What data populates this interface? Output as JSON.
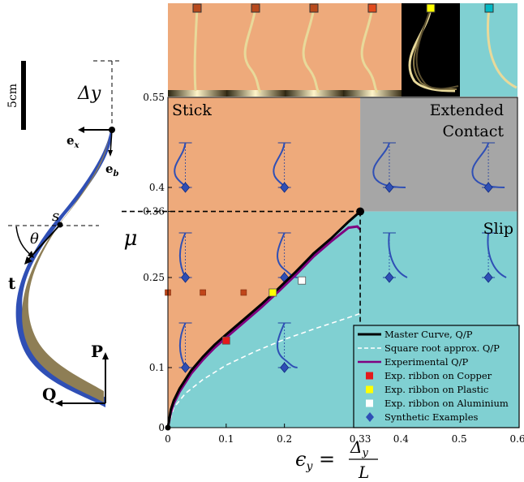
{
  "colors": {
    "stick": "#EEAA7B",
    "slip": "#80D0D2",
    "extended": "#A6A6A6",
    "master": "#000000",
    "sqrt": "#ffffff",
    "experimental": "#800080",
    "copper": "#E41A1C",
    "plastic": "#FFFF00",
    "aluminium": "#ffffff",
    "synthetic": "#2F4FB5",
    "ribbon_outer": "#2F4FB5",
    "ribbon_inner": "#8E7E55"
  },
  "left_panel": {
    "scale_label": "5cm",
    "delta_label": "Δy",
    "ex_label": "ex",
    "eb_label": "eb",
    "s_label": "s",
    "theta_label": "θ",
    "t_label": "t",
    "P_label": "P",
    "Q_label": "Q"
  },
  "regions": {
    "stick": "Stick",
    "extended_line1": "Extended",
    "extended_line2": "Contact",
    "slip": "Slip"
  },
  "chart_data": {
    "type": "line",
    "xlabel": "ϵy = Δy / L",
    "ylabel": "μ",
    "xlim": [
      0,
      0.6
    ],
    "ylim": [
      0,
      0.55
    ],
    "x_ticks": [
      0,
      0.1,
      0.2,
      0.33,
      0.4,
      0.5,
      0.6
    ],
    "x_tick_labels": [
      "0",
      "0.1",
      "0.2",
      "0.33",
      "0.4",
      "0.5",
      "0.6"
    ],
    "y_ticks": [
      0,
      0.1,
      0.25,
      0.36,
      0.4,
      0.55
    ],
    "y_tick_labels": [
      "0",
      "0.1",
      "0.25",
      "0.36",
      "0.4",
      "0.55"
    ],
    "critical_point": {
      "x": 0.33,
      "y": 0.36
    },
    "series": [
      {
        "name": "Master Curve, Q/P",
        "style": "solid-black",
        "x": [
          0,
          0.005,
          0.01,
          0.02,
          0.04,
          0.06,
          0.08,
          0.1,
          0.13,
          0.16,
          0.19,
          0.22,
          0.25,
          0.28,
          0.31,
          0.33
        ],
        "y": [
          0,
          0.03,
          0.045,
          0.065,
          0.095,
          0.118,
          0.138,
          0.155,
          0.18,
          0.205,
          0.232,
          0.26,
          0.29,
          0.315,
          0.343,
          0.36
        ]
      },
      {
        "name": "Square root approx. Q/P",
        "style": "dashed-white",
        "x": [
          0,
          0.01,
          0.03,
          0.06,
          0.1,
          0.15,
          0.2,
          0.25,
          0.3,
          0.33
        ],
        "y": [
          0,
          0.033,
          0.057,
          0.08,
          0.104,
          0.127,
          0.147,
          0.164,
          0.18,
          0.19
        ]
      },
      {
        "name": "Experimental Q/P",
        "style": "solid-purple",
        "x": [
          0,
          0.005,
          0.01,
          0.02,
          0.04,
          0.06,
          0.08,
          0.1,
          0.13,
          0.16,
          0.19,
          0.22,
          0.25,
          0.28,
          0.31,
          0.325,
          0.33
        ],
        "y": [
          0,
          0.025,
          0.04,
          0.06,
          0.09,
          0.113,
          0.133,
          0.15,
          0.175,
          0.2,
          0.227,
          0.255,
          0.285,
          0.31,
          0.333,
          0.335,
          0.33
        ]
      }
    ],
    "exp_ribbon_copper": {
      "name": "Exp. ribbon on Copper",
      "points": [
        {
          "x": 0.1,
          "y": 0.145
        }
      ]
    },
    "exp_ribbon_plastic": {
      "name": "Exp. ribbon on Plastic",
      "points": [
        {
          "x": 0.18,
          "y": 0.225
        }
      ]
    },
    "exp_ribbon_aluminium": {
      "name": "Exp. ribbon on Aluminium",
      "points": [
        {
          "x": 0.23,
          "y": 0.245
        }
      ]
    },
    "synthetic_examples": {
      "name": "Synthetic Examples",
      "points": [
        {
          "x": 0.03,
          "y": 0.1
        },
        {
          "x": 0.2,
          "y": 0.1
        },
        {
          "x": 0.03,
          "y": 0.25
        },
        {
          "x": 0.2,
          "y": 0.25
        },
        {
          "x": 0.38,
          "y": 0.25
        },
        {
          "x": 0.55,
          "y": 0.25
        },
        {
          "x": 0.03,
          "y": 0.4
        },
        {
          "x": 0.2,
          "y": 0.4
        },
        {
          "x": 0.38,
          "y": 0.4
        },
        {
          "x": 0.55,
          "y": 0.4
        }
      ]
    },
    "experiment_markers": {
      "y": 0.225,
      "x": [
        0,
        0.06,
        0.13
      ]
    },
    "legend": {
      "position": "bottom-right",
      "entries": [
        "Master Curve, Q/P",
        "Square root approx. Q/P",
        "Experimental Q/P",
        "Exp. ribbon on Copper",
        "Exp. ribbon on Plastic",
        "Exp. ribbon on Aluminium",
        "Synthetic Examples"
      ]
    }
  },
  "photos": {
    "marker_colors": [
      "#B94A1C",
      "#B94A1C",
      "#B94A1C",
      "#E24A1C",
      "#FFFF00",
      "#00B8C4"
    ]
  }
}
